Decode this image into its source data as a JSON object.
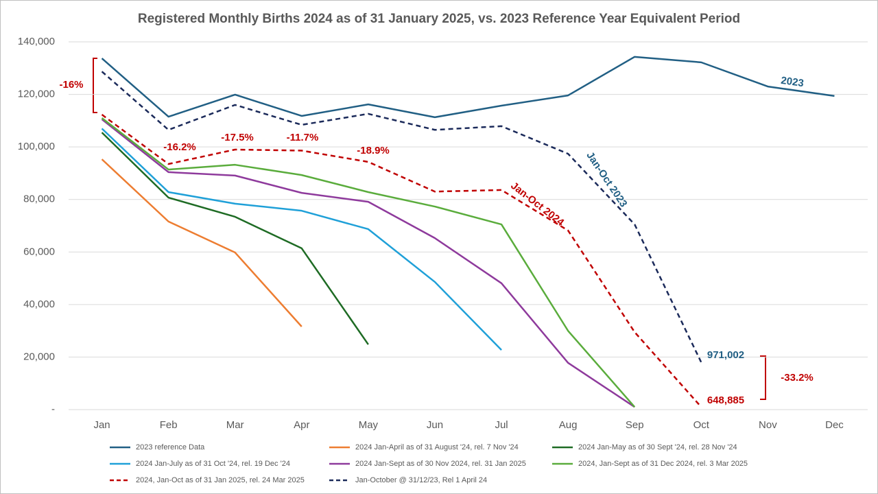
{
  "chart_data": {
    "type": "line",
    "title": "Registered Monthly Births 2024 as of 31 January 2025, vs. 2023 Reference Year Equivalent Period",
    "categories": [
      "Jan",
      "Feb",
      "Mar",
      "Apr",
      "May",
      "Jun",
      "Jul",
      "Aug",
      "Sep",
      "Oct",
      "Nov",
      "Dec"
    ],
    "ylim": [
      0,
      140000
    ],
    "yticks": [
      {
        "value": 0,
        "label": "-"
      },
      {
        "value": 20000,
        "label": "20,000"
      },
      {
        "value": 40000,
        "label": "40,000"
      },
      {
        "value": 60000,
        "label": "60,000"
      },
      {
        "value": 80000,
        "label": "80,000"
      },
      {
        "value": 100000,
        "label": "100,000"
      },
      {
        "value": 120000,
        "label": "120,000"
      },
      {
        "value": 140000,
        "label": "140,000"
      }
    ],
    "grid": true,
    "legend": "bottom",
    "series": [
      {
        "name": "2023 reference Data",
        "color": "#215f84",
        "dash": false,
        "values": [
          133700,
          111500,
          119900,
          111800,
          116200,
          111300,
          115700,
          119600,
          134300,
          132200,
          123000,
          119400
        ]
      },
      {
        "name": "2024 Jan-April as of 31 August '24, rel. 7 Nov '24",
        "color": "#ed7d31",
        "dash": false,
        "values": [
          95300,
          71600,
          59800,
          31600,
          null,
          null,
          null,
          null,
          null,
          null,
          null,
          null
        ]
      },
      {
        "name": "2024 Jan-May as of 30 Sept '24, rel. 28 Nov '24",
        "color": "#1e6b24",
        "dash": false,
        "values": [
          105500,
          80700,
          73400,
          61400,
          24800,
          null,
          null,
          null,
          null,
          null,
          null,
          null
        ]
      },
      {
        "name": "2024 Jan-July as of 31 Oct '24, rel. 19 Dec '24",
        "color": "#1fa0d8",
        "dash": false,
        "values": [
          107000,
          82800,
          78400,
          75700,
          68700,
          48600,
          22700,
          null,
          null,
          null,
          null,
          null
        ]
      },
      {
        "name": "2024 Jan-Sept as of 30 Nov 2024, rel. 31 Jan 2025",
        "color": "#8e3a9c",
        "dash": false,
        "values": [
          110500,
          90400,
          89100,
          82500,
          79100,
          65300,
          48100,
          17800,
          1000,
          null,
          null,
          null
        ]
      },
      {
        "name": "2024, Jan-Sept as of 31 Dec 2024, rel. 3 Mar 2025",
        "color": "#5aac3c",
        "dash": false,
        "values": [
          111000,
          91400,
          93200,
          89300,
          82800,
          77300,
          70500,
          30000,
          1000,
          null,
          null,
          null
        ]
      },
      {
        "name": "2024, Jan-Oct as of 31 Jan 2025, rel. 24 Mar 2025",
        "color": "#c00000",
        "dash": true,
        "values": [
          112300,
          93500,
          99000,
          98600,
          94300,
          83000,
          83600,
          68200,
          29500,
          1000,
          null,
          null
        ]
      },
      {
        "name": "Jan-October @ 31/12/23, Rel 1 April 24",
        "color": "#1b2a5a",
        "dash": true,
        "values": [
          128700,
          106500,
          116000,
          108400,
          112600,
          106500,
          107900,
          97400,
          70500,
          18000,
          null,
          null
        ]
      }
    ],
    "annotations": [
      "-16%",
      "-16.2%",
      "-17.5%",
      "-11.7%",
      "-18.9%",
      "Jan-Oct 2024",
      "Jan-Oct 2023",
      "2023",
      "971,002",
      "648,885",
      "-33.2%"
    ]
  }
}
